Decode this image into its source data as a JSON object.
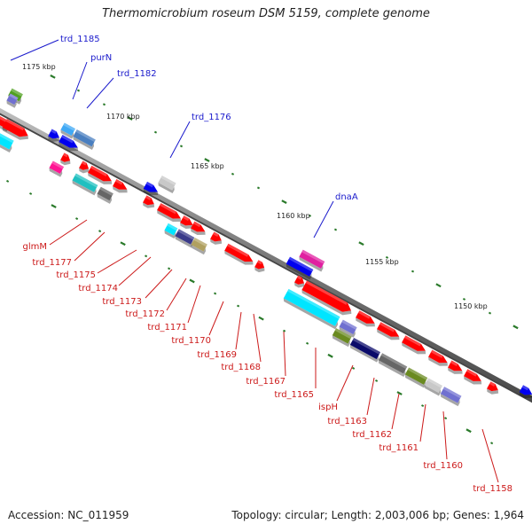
{
  "title": "Thermomicrobium roseum DSM 5159, complete genome",
  "footer": {
    "accession": "Accession: NC_011959",
    "summary": "Topology: circular; Length: 2,003,006 bp; Genes: 1,964"
  },
  "colors": {
    "backbone": "#7a7a7a",
    "label_blue": "#1a1acc",
    "label_red": "#cc1a1a",
    "tick": "#2a7a2a"
  },
  "kbp_labels": [
    "1175 kbp",
    "1170 kbp",
    "1165 kbp",
    "1160 kbp",
    "1155 kbp",
    "1150 kbp"
  ],
  "labels_top": [
    "trd_1185",
    "purN",
    "trd_1182",
    "trd_1176",
    "dnaA"
  ],
  "labels_bottom": [
    "glmM",
    "trd_1177",
    "trd_1175",
    "trd_1174",
    "trd_1173",
    "trd_1172",
    "trd_1171",
    "trd_1170",
    "trd_1169",
    "trd_1168",
    "trd_1167",
    "trd_1165",
    "ispH",
    "trd_1163",
    "trd_1162",
    "trd_1161",
    "trd_1160",
    "trd_1158"
  ],
  "genes": [
    {
      "color": "#ff0000",
      "dir": "fwd"
    },
    {
      "color": "#00e5ff",
      "dir": "none"
    },
    {
      "color": "#3fa9f5",
      "dir": "none"
    },
    {
      "color": "#4a7fc0",
      "dir": "fwd"
    },
    {
      "color": "#0000ee",
      "dir": "fwd"
    },
    {
      "color": "#ff1493",
      "dir": "none"
    },
    {
      "color": "#20c0c0",
      "dir": "none"
    },
    {
      "color": "#666666",
      "dir": "none"
    },
    {
      "color": "#c8c8c8",
      "dir": "none"
    },
    {
      "color": "#3a3a8a",
      "dir": "none"
    },
    {
      "color": "#b0a060",
      "dir": "none"
    },
    {
      "color": "#e020a0",
      "dir": "none"
    },
    {
      "color": "#7070d0",
      "dir": "none"
    },
    {
      "color": "#0a0a6a",
      "dir": "none"
    },
    {
      "color": "#6a8a20",
      "dir": "none"
    },
    {
      "color": "#50a020",
      "dir": "none"
    }
  ]
}
